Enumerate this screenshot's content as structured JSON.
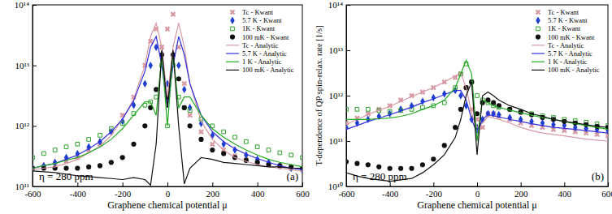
{
  "chart_data": [
    {
      "type": "line",
      "x_label": "Graphene chemical potential μ",
      "annotations": [
        "η = 280 ppm",
        "(a)"
      ],
      "log": "y",
      "legend": "upper right",
      "xlim": [
        -600,
        600
      ],
      "xticks": [
        -600,
        -400,
        -200,
        0,
        200,
        400,
        600
      ],
      "ylim": [
        100000000000.0,
        100000000000000.0
      ],
      "yticks": [
        {
          "value": 100000000000.0,
          "label": "10¹¹"
        },
        {
          "value": 1000000000000.0,
          "label": "10¹²"
        },
        {
          "value": 10000000000000.0,
          "label": "10¹³"
        },
        {
          "value": 100000000000000.0,
          "label": "10¹⁴"
        }
      ],
      "x": [
        -600,
        -550,
        -500,
        -450,
        -400,
        -350,
        -300,
        -250,
        -200,
        -150,
        -100,
        -75,
        -50,
        -25,
        0,
        25,
        50,
        75,
        100,
        150,
        200,
        250,
        300,
        350,
        400,
        450,
        500,
        550,
        600
      ],
      "series": [
        {
          "name": "Tc - Kwant",
          "type": "scatter",
          "marker": "x",
          "color": "#d79aa3",
          "values": [
            200000000000.0,
            210000000000.0,
            220000000000.0,
            260000000000.0,
            300000000000.0,
            400000000000.0,
            500000000000.0,
            800000000000.0,
            1500000000000.0,
            3000000000000.0,
            10000000000000.0,
            25000000000000.0,
            40000000000000.0,
            20000000000000.0,
            40000000000000.0,
            70000000000000.0,
            20000000000000.0,
            5000000000000.0,
            1500000000000.0,
            800000000000.0,
            500000000000.0,
            400000000000.0,
            320000000000.0,
            280000000000.0,
            250000000000.0,
            230000000000.0,
            210000000000.0,
            200000000000.0,
            190000000000.0
          ]
        },
        {
          "name": "5.7 K - Kwant",
          "type": "scatter",
          "marker": "diamond",
          "color": "#1f3fd0",
          "values": [
            200000000000.0,
            220000000000.0,
            250000000000.0,
            300000000000.0,
            350000000000.0,
            450000000000.0,
            550000000000.0,
            800000000000.0,
            1200000000000.0,
            2200000000000.0,
            5000000000000.0,
            10000000000000.0,
            20000000000000.0,
            15000000000000.0,
            5000000000000.0,
            15000000000000.0,
            10000000000000.0,
            4000000000000.0,
            2000000000000.0,
            1100000000000.0,
            700000000000.0,
            500000000000.0,
            400000000000.0,
            330000000000.0,
            280000000000.0,
            250000000000.0,
            220000000000.0,
            200000000000.0,
            190000000000.0
          ]
        },
        {
          "name": "1K - Kwant",
          "type": "scatter",
          "marker": "square",
          "color": "#2ca02c",
          "values": [
            300000000000.0,
            350000000000.0,
            400000000000.0,
            450000000000.0,
            500000000000.0,
            600000000000.0,
            700000000000.0,
            900000000000.0,
            1100000000000.0,
            1600000000000.0,
            2200000000000.0,
            2500000000000.0,
            3000000000000.0,
            10000000000000.0,
            1000000000000.0,
            10000000000000.0,
            3000000000000.0,
            2000000000000.0,
            1800000000000.0,
            1300000000000.0,
            1000000000000.0,
            800000000000.0,
            650000000000.0,
            550000000000.0,
            450000000000.0,
            400000000000.0,
            360000000000.0,
            330000000000.0,
            300000000000.0
          ]
        },
        {
          "name": "100 mK - Kwant",
          "type": "scatter",
          "marker": "circle",
          "color": "#111111",
          "values": [
            200000000000.0,
            200000000000.0,
            200000000000.0,
            200000000000.0,
            200000000000.0,
            210000000000.0,
            220000000000.0,
            250000000000.0,
            300000000000.0,
            500000000000.0,
            1000000000000.0,
            2000000000000.0,
            4000000000000.0,
            15000000000000.0,
            3000000000000.0,
            15000000000000.0,
            6000000000000.0,
            2000000000000.0,
            1000000000000.0,
            600000000000.0,
            400000000000.0,
            350000000000.0,
            300000000000.0,
            270000000000.0,
            250000000000.0,
            230000000000.0,
            220000000000.0,
            210000000000.0,
            200000000000.0
          ]
        },
        {
          "name": "Tc - Analytic",
          "type": "line",
          "line_style": "solid",
          "color": "#d79aa3",
          "values": [
            190000000000.0,
            200000000000.0,
            210000000000.0,
            240000000000.0,
            280000000000.0,
            360000000000.0,
            460000000000.0,
            700000000000.0,
            1300000000000.0,
            2800000000000.0,
            10000000000000.0,
            30000000000000.0,
            50000000000000.0,
            20000000000000.0,
            3000000000000.0,
            20000000000000.0,
            50000000000000.0,
            20000000000000.0,
            5000000000000.0,
            1200000000000.0,
            600000000000.0,
            400000000000.0,
            300000000000.0,
            260000000000.0,
            230000000000.0,
            210000000000.0,
            200000000000.0,
            190000000000.0,
            180000000000.0
          ]
        },
        {
          "name": "5.7 K - Analytic",
          "type": "line",
          "line_style": "solid",
          "color": "#3030e0",
          "values": [
            200000000000.0,
            220000000000.0,
            240000000000.0,
            280000000000.0,
            330000000000.0,
            420000000000.0,
            550000000000.0,
            800000000000.0,
            1300000000000.0,
            2600000000000.0,
            8000000000000.0,
            20000000000000.0,
            30000000000000.0,
            10000000000000.0,
            2000000000000.0,
            10000000000000.0,
            30000000000000.0,
            15000000000000.0,
            5000000000000.0,
            1500000000000.0,
            800000000000.0,
            550000000000.0,
            420000000000.0,
            340000000000.0,
            290000000000.0,
            250000000000.0,
            220000000000.0,
            200000000000.0,
            190000000000.0
          ]
        },
        {
          "name": "1 K - Analytic",
          "type": "line",
          "line_style": "solid",
          "color": "#22aa22",
          "values": [
            200000000000.0,
            220000000000.0,
            240000000000.0,
            270000000000.0,
            300000000000.0,
            360000000000.0,
            450000000000.0,
            600000000000.0,
            900000000000.0,
            1500000000000.0,
            2500000000000.0,
            2500000000000.0,
            1500000000000.0,
            15000000000000.0,
            1000000000000.0,
            15000000000000.0,
            2000000000000.0,
            3000000000000.0,
            3000000000000.0,
            1500000000000.0,
            900000000000.0,
            650000000000.0,
            500000000000.0,
            400000000000.0,
            330000000000.0,
            280000000000.0,
            250000000000.0,
            230000000000.0,
            210000000000.0
          ]
        },
        {
          "name": "100 mK - Analytic",
          "type": "line",
          "line_style": "solid",
          "color": "#111111",
          "values": [
            180000000000.0,
            175000000000.0,
            170000000000.0,
            160000000000.0,
            150000000000.0,
            145000000000.0,
            140000000000.0,
            135000000000.0,
            130000000000.0,
            140000000000.0,
            130000000000.0,
            105000000000.0,
            500000000000.0,
            18000000000000.0,
            2000000000000.0,
            18000000000000.0,
            1000000000000.0,
            110000000000.0,
            200000000000.0,
            300000000000.0,
            280000000000.0,
            250000000000.0,
            240000000000.0,
            230000000000.0,
            220000000000.0,
            210000000000.0,
            210000000000.0,
            200000000000.0,
            200000000000.0
          ]
        }
      ]
    },
    {
      "type": "line",
      "x_label": "Graphene chemical potential μ",
      "y_label": "T-dependence of QP spin-relax. rate [1/s]",
      "annotations": [
        "η = 280 ppm",
        "(b)"
      ],
      "log": "y",
      "legend": "upper right",
      "xlim": [
        -600,
        600
      ],
      "xticks": [
        -600,
        -400,
        -200,
        0,
        200,
        400,
        600
      ],
      "ylim": [
        10000000000.0,
        100000000000000.0
      ],
      "yticks": [
        {
          "value": 10000000000.0,
          "label": "10¹⁰"
        },
        {
          "value": 100000000000.0,
          "label": "10¹¹"
        },
        {
          "value": 1000000000000.0,
          "label": "10¹²"
        },
        {
          "value": 10000000000000.0,
          "label": "10¹³"
        },
        {
          "value": 100000000000000.0,
          "label": "10¹⁴"
        }
      ],
      "x": [
        -600,
        -550,
        -500,
        -450,
        -400,
        -350,
        -300,
        -250,
        -200,
        -150,
        -100,
        -75,
        -50,
        -25,
        0,
        25,
        50,
        75,
        100,
        150,
        200,
        250,
        300,
        350,
        400,
        450,
        500,
        550,
        600
      ],
      "series": [
        {
          "name": "Tc - Kwant",
          "type": "scatter",
          "marker": "x",
          "color": "#d79aa3",
          "values": [
            250000000000.0,
            320000000000.0,
            400000000000.0,
            500000000000.0,
            600000000000.0,
            800000000000.0,
            1000000000000.0,
            1200000000000.0,
            1500000000000.0,
            2000000000000.0,
            2500000000000.0,
            3000000000000.0,
            1500000000000.0,
            500000000000.0,
            300000000000.0,
            200000000000.0,
            400000000000.0,
            400000000000.0,
            350000000000.0,
            300000000000.0,
            250000000000.0,
            220000000000.0,
            200000000000.0,
            180000000000.0,
            170000000000.0,
            160000000000.0,
            150000000000.0,
            140000000000.0,
            130000000000.0
          ]
        },
        {
          "name": "5.7 K - Kwant",
          "type": "scatter",
          "marker": "diamond",
          "color": "#1f3fd0",
          "values": [
            200000000000.0,
            250000000000.0,
            300000000000.0,
            350000000000.0,
            400000000000.0,
            500000000000.0,
            600000000000.0,
            750000000000.0,
            900000000000.0,
            1100000000000.0,
            1300000000000.0,
            1000000000000.0,
            600000000000.0,
            300000000000.0,
            200000000000.0,
            300000000000.0,
            400000000000.0,
            400000000000.0,
            380000000000.0,
            330000000000.0,
            300000000000.0,
            270000000000.0,
            250000000000.0,
            230000000000.0,
            220000000000.0,
            200000000000.0,
            190000000000.0,
            180000000000.0,
            170000000000.0
          ]
        },
        {
          "name": "1K - Kwant",
          "type": "scatter",
          "marker": "square",
          "color": "#2ca02c",
          "values": [
            500000000000.0,
            500000000000.0,
            500000000000.0,
            470000000000.0,
            450000000000.0,
            470000000000.0,
            500000000000.0,
            550000000000.0,
            600000000000.0,
            700000000000.0,
            1500000000000.0,
            3000000000000.0,
            5000000000000.0,
            2000000000000.0,
            1000000000000.0,
            800000000000.0,
            700000000000.0,
            600000000000.0,
            550000000000.0,
            500000000000.0,
            450000000000.0,
            400000000000.0,
            360000000000.0,
            330000000000.0,
            300000000000.0,
            280000000000.0,
            260000000000.0,
            240000000000.0,
            220000000000.0
          ]
        },
        {
          "name": "100 mK - Kwant",
          "type": "scatter",
          "marker": "circle",
          "color": "#111111",
          "values": [
            35000000000.0,
            32000000000.0,
            30000000000.0,
            27000000000.0,
            25000000000.0,
            25000000000.0,
            25000000000.0,
            30000000000.0,
            40000000000.0,
            80000000000.0,
            200000000000.0,
            500000000000.0,
            1500000000000.0,
            2000000000000.0,
            400000000000.0,
            700000000000.0,
            800000000000.0,
            700000000000.0,
            600000000000.0,
            500000000000.0,
            430000000000.0,
            380000000000.0,
            330000000000.0,
            300000000000.0,
            270000000000.0,
            250000000000.0,
            230000000000.0,
            210000000000.0,
            200000000000.0
          ]
        },
        {
          "name": "Tc - Analytic",
          "type": "line",
          "line_style": "solid",
          "color": "#d79aa3",
          "values": [
            230000000000.0,
            300000000000.0,
            380000000000.0,
            480000000000.0,
            580000000000.0,
            750000000000.0,
            950000000000.0,
            1200000000000.0,
            1500000000000.0,
            2000000000000.0,
            2700000000000.0,
            3200000000000.0,
            1500000000000.0,
            400000000000.0,
            200000000000.0,
            250000000000.0,
            350000000000.0,
            320000000000.0,
            300000000000.0,
            250000000000.0,
            200000000000.0,
            170000000000.0,
            150000000000.0,
            140000000000.0,
            130000000000.0,
            120000000000.0,
            110000000000.0,
            105000000000.0,
            100000000000.0
          ]
        },
        {
          "name": "5.7 K - Analytic",
          "type": "line",
          "line_style": "solid",
          "color": "#3030e0",
          "values": [
            180000000000.0,
            220000000000.0,
            270000000000.0,
            320000000000.0,
            380000000000.0,
            460000000000.0,
            560000000000.0,
            700000000000.0,
            850000000000.0,
            1050000000000.0,
            1300000000000.0,
            1300000000000.0,
            800000000000.0,
            300000000000.0,
            150000000000.0,
            300000000000.0,
            380000000000.0,
            360000000000.0,
            340000000000.0,
            300000000000.0,
            270000000000.0,
            240000000000.0,
            220000000000.0,
            200000000000.0,
            190000000000.0,
            180000000000.0,
            170000000000.0,
            160000000000.0,
            150000000000.0
          ]
        },
        {
          "name": "1 K - Analytic",
          "type": "line",
          "line_style": "solid",
          "color": "#22aa22",
          "values": [
            300000000000.0,
            300000000000.0,
            300000000000.0,
            310000000000.0,
            320000000000.0,
            350000000000.0,
            400000000000.0,
            500000000000.0,
            600000000000.0,
            800000000000.0,
            1500000000000.0,
            3000000000000.0,
            6000000000000.0,
            3000000000000.0,
            100000000000.0,
            800000000000.0,
            700000000000.0,
            600000000000.0,
            550000000000.0,
            480000000000.0,
            420000000000.0,
            370000000000.0,
            330000000000.0,
            300000000000.0,
            270000000000.0,
            240000000000.0,
            220000000000.0,
            200000000000.0,
            180000000000.0
          ]
        },
        {
          "name": "100 mK - Analytic",
          "type": "line",
          "line_style": "solid",
          "color": "#111111",
          "values": [
            20000000000.0,
            17000000000.0,
            15000000000.0,
            14000000000.0,
            13000000000.0,
            14000000000.0,
            15000000000.0,
            20000000000.0,
            30000000000.0,
            50000000000.0,
            120000000000.0,
            300000000000.0,
            1000000000000.0,
            2000000000000.0,
            50000000000.0,
            1000000000000.0,
            1200000000000.0,
            1000000000000.0,
            800000000000.0,
            600000000000.0,
            500000000000.0,
            400000000000.0,
            350000000000.0,
            300000000000.0,
            270000000000.0,
            250000000000.0,
            230000000000.0,
            210000000000.0,
            200000000000.0
          ]
        }
      ]
    }
  ]
}
